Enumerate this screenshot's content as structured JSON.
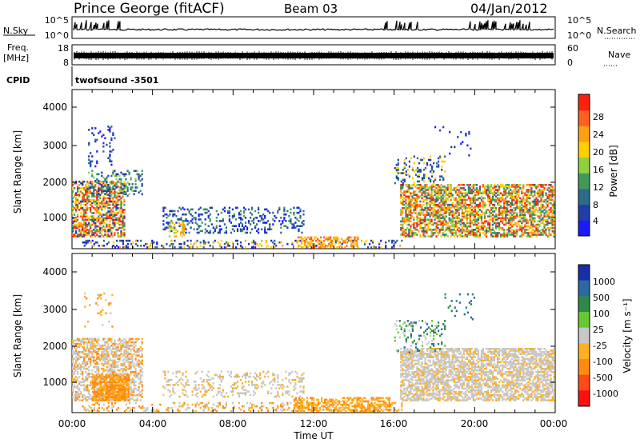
{
  "header": {
    "station": "Prince George (fitACF)",
    "beam": "Beam 03",
    "date": "04/Jan/2012"
  },
  "colors": {
    "power_scale": [
      "#1a1aff",
      "#1f3fa8",
      "#2e6b8a",
      "#3f9a5a",
      "#90d040",
      "#ffd000",
      "#ffa010",
      "#ff6020",
      "#ff2010"
    ],
    "velocity_scale": [
      "#1a2ea8",
      "#2b6aa0",
      "#2e8a4a",
      "#66c830",
      "#c8c8c8",
      "#ffb020",
      "#ff8a10",
      "#ff4a1a",
      "#ff1010"
    ]
  },
  "chart_data": [
    {
      "type": "line",
      "panel": "N.Sky / N.Search",
      "left_label": "N.Sky",
      "right_label": "N.Search",
      "left_ticks": [
        "10^5",
        "10^0"
      ],
      "right_ticks": [
        "10^5",
        "10^0"
      ]
    },
    {
      "type": "line",
      "panel": "Freq / Nave",
      "left_label": "Freq.",
      "left_unit": "[MHz]",
      "right_label": "Nave",
      "left_ticks": [
        "18",
        "8"
      ],
      "right_ticks": [
        "60",
        "0"
      ]
    },
    {
      "type": "text",
      "panel": "CPID",
      "left_label": "CPID",
      "value": "twofsound -3501"
    },
    {
      "type": "heatmap",
      "panel": "power",
      "ylabel": "Slant Range [km]",
      "y_ticks": [
        "4000",
        "3000",
        "2000",
        "1000"
      ],
      "ylim": [
        180,
        4500
      ],
      "colorbar_label": "Power [dB]",
      "colorbar_ticks": [
        "28",
        "24",
        "20",
        "16",
        "12",
        "8",
        "4"
      ],
      "colorbar_range": [
        0,
        32
      ]
    },
    {
      "type": "heatmap",
      "panel": "velocity",
      "ylabel": "Slant Range [km]",
      "y_ticks": [
        "4000",
        "3000",
        "2000",
        "1000"
      ],
      "ylim": [
        180,
        4500
      ],
      "colorbar_label": "Velocity [m s⁻¹]",
      "colorbar_ticks": [
        "1000",
        "500",
        "100",
        "25",
        "-25",
        "-100",
        "-500",
        "-1000"
      ],
      "xlabel": "Time UT",
      "x_ticks": [
        "00:00",
        "04:00",
        "08:00",
        "12:00",
        "16:00",
        "20:00",
        "00:00"
      ]
    }
  ]
}
